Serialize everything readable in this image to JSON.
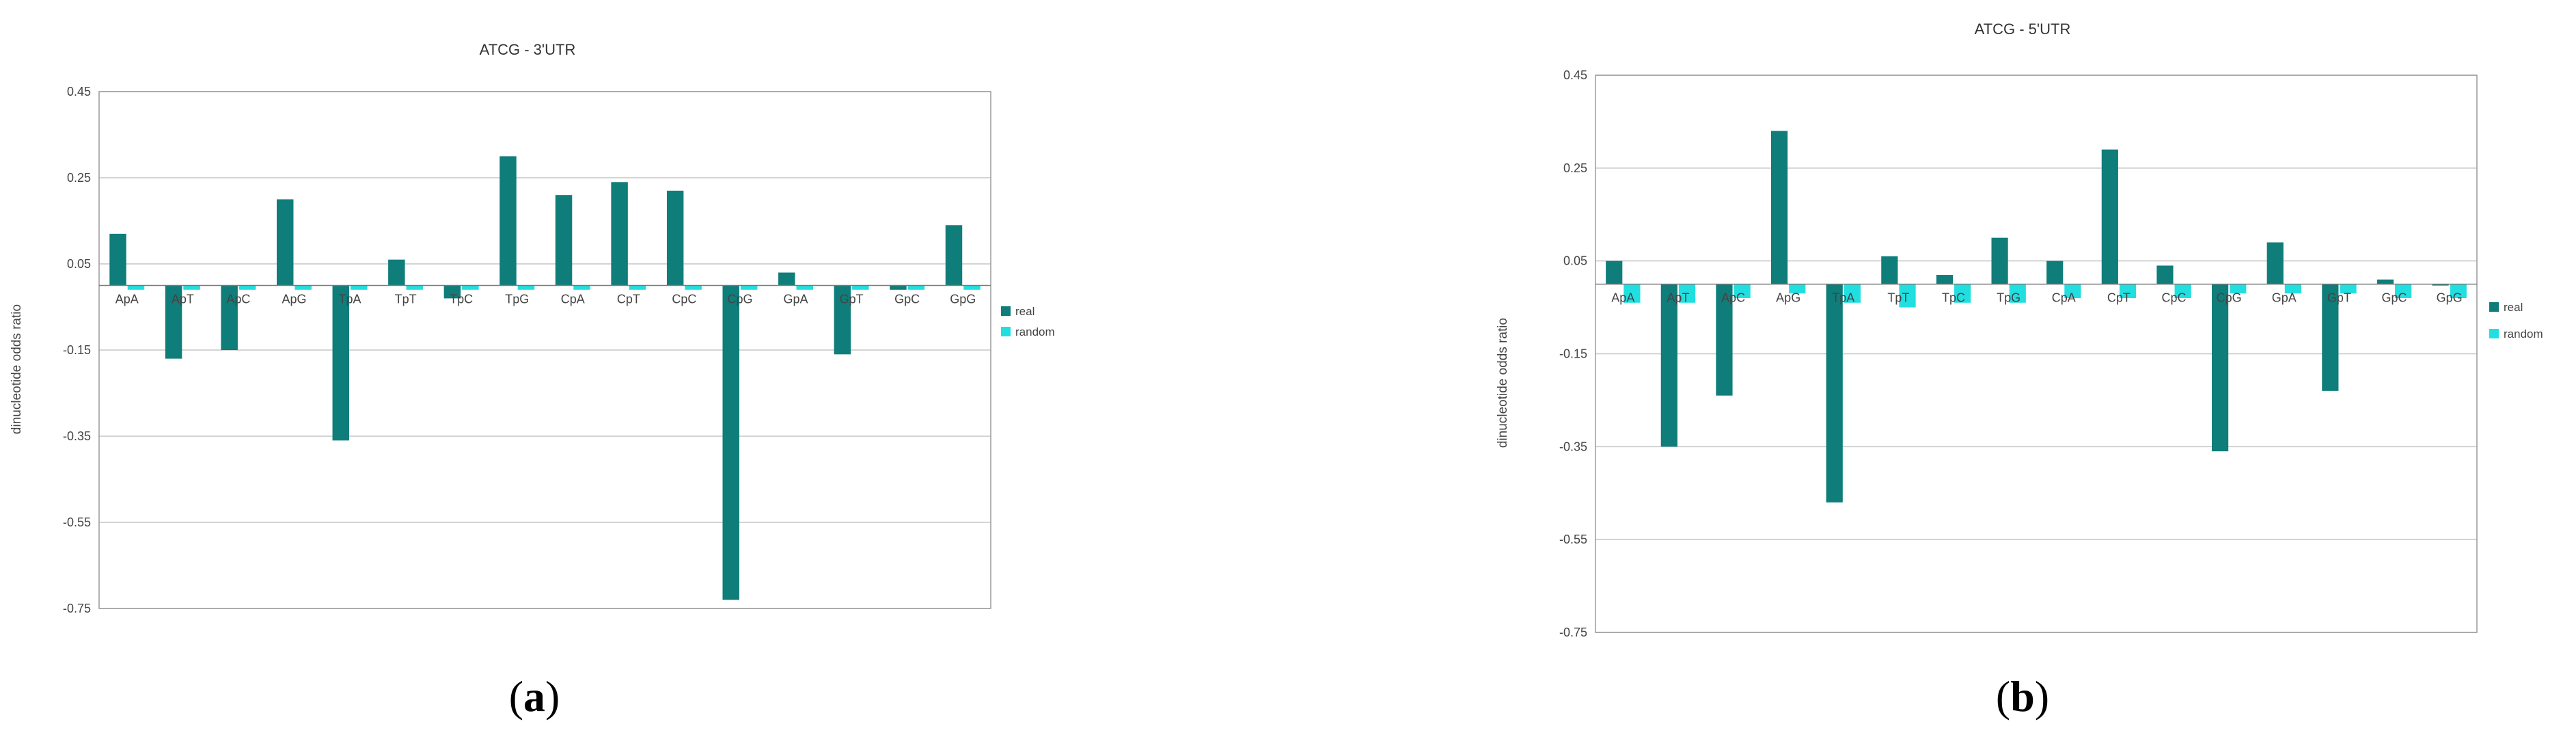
{
  "colors": {
    "real": "#0f7d7a",
    "random": "#21dfe0",
    "grid": "#c6c6c6",
    "frame": "#9a9a9a",
    "text": "#444444"
  },
  "chart_data": [
    {
      "id": "a",
      "type": "bar",
      "title": "ATCG  -  3'UTR",
      "ylabel": "dinucleotide odds ratio",
      "xlabel": "",
      "caption_letter": "a",
      "ylim": [
        -0.75,
        0.45
      ],
      "yticks": [
        0.45,
        0.25,
        0.05,
        -0.15,
        -0.35,
        -0.55,
        -0.75
      ],
      "ytick_labels": [
        "0.45",
        "0.25",
        "0.05",
        "-0.15",
        "-0.35",
        "-0.55",
        "-0.75"
      ],
      "baseline": 0.0,
      "grid": true,
      "legend_position": "right",
      "categories": [
        "ApA",
        "ApT",
        "ApC",
        "ApG",
        "TpA",
        "TpT",
        "TpC",
        "TpG",
        "CpA",
        "CpT",
        "CpC",
        "CpG",
        "GpA",
        "GpT",
        "GpC",
        "GpG"
      ],
      "series": [
        {
          "name": "real",
          "values": [
            0.12,
            -0.17,
            -0.15,
            0.2,
            -0.36,
            0.06,
            -0.03,
            0.3,
            0.21,
            0.24,
            0.22,
            -0.73,
            0.03,
            -0.16,
            -0.01,
            0.14
          ]
        },
        {
          "name": "random",
          "values": [
            -0.01,
            -0.01,
            -0.01,
            -0.01,
            -0.01,
            -0.01,
            -0.01,
            -0.01,
            -0.01,
            -0.01,
            -0.01,
            -0.01,
            -0.01,
            -0.01,
            -0.01,
            -0.01
          ]
        }
      ]
    },
    {
      "id": "b",
      "type": "bar",
      "title": "ATCG  -  5'UTR",
      "ylabel": "dinucleotide odds ratio",
      "xlabel": "",
      "caption_letter": "b",
      "ylim": [
        -0.75,
        0.45
      ],
      "yticks": [
        0.45,
        0.25,
        0.05,
        -0.15,
        -0.35,
        -0.55,
        -0.75
      ],
      "ytick_labels": [
        "0.45",
        "0.25",
        "0.05",
        "-0.15",
        "-0.35",
        "-0.55",
        "-0.75"
      ],
      "baseline": 0.0,
      "grid": true,
      "legend_position": "right",
      "categories": [
        "ApA",
        "ApT",
        "ApC",
        "ApG",
        "TpA",
        "TpT",
        "TpC",
        "TpG",
        "CpA",
        "CpT",
        "CpC",
        "CpG",
        "GpA",
        "GpT",
        "GpC",
        "GpG"
      ],
      "series": [
        {
          "name": "real",
          "values": [
            0.05,
            -0.35,
            -0.24,
            0.33,
            -0.47,
            0.06,
            0.02,
            0.1,
            0.05,
            0.29,
            0.04,
            -0.36,
            0.09,
            -0.23,
            0.01,
            0.0
          ]
        },
        {
          "name": "random",
          "values": [
            -0.04,
            -0.04,
            -0.03,
            -0.02,
            -0.04,
            -0.05,
            -0.04,
            -0.04,
            -0.03,
            -0.03,
            -0.03,
            -0.02,
            -0.02,
            -0.02,
            -0.03,
            -0.03
          ]
        }
      ]
    }
  ],
  "captions": [
    {
      "open": "(",
      "letter": "a",
      "close": ")"
    },
    {
      "open": "(",
      "letter": "b",
      "close": ")"
    }
  ]
}
